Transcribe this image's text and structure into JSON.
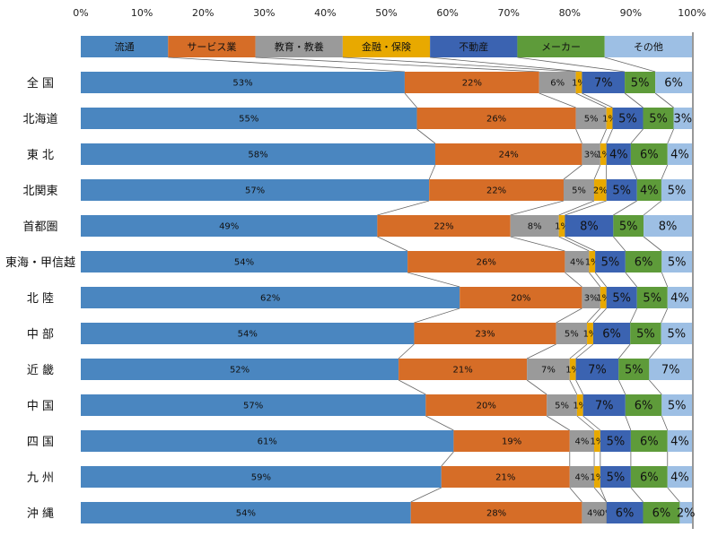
{
  "chart_data": {
    "type": "bar",
    "stacked": "100%",
    "orientation": "horizontal",
    "xlim": [
      0,
      100
    ],
    "xticks": [
      "0%",
      "10%",
      "20%",
      "30%",
      "40%",
      "50%",
      "60%",
      "70%",
      "80%",
      "90%",
      "100%"
    ],
    "legend_position": "top",
    "categories": [
      "全 国",
      "北海道",
      "東 北",
      "北関東",
      "首都圏",
      "東海・甲信越",
      "北 陸",
      "中 部",
      "近 畿",
      "中 国",
      "四 国",
      "九 州",
      "沖 縄"
    ],
    "series": [
      {
        "name": "流通",
        "color": "#4a86c0",
        "values": [
          53,
          55,
          58,
          57,
          49,
          54,
          62,
          54,
          52,
          57,
          61,
          59,
          54
        ]
      },
      {
        "name": "サービス業",
        "color": "#d66d27",
        "values": [
          22,
          26,
          24,
          22,
          22,
          26,
          20,
          23,
          21,
          20,
          19,
          21,
          28
        ]
      },
      {
        "name": "教育・教養",
        "color": "#9a9a9a",
        "values": [
          6,
          5,
          3,
          5,
          8,
          4,
          3,
          5,
          7,
          5,
          4,
          4,
          4
        ]
      },
      {
        "name": "金融・保険",
        "color": "#e8a900",
        "values": [
          1,
          1,
          1,
          2,
          1,
          1,
          1,
          1,
          1,
          1,
          1,
          1,
          0
        ]
      },
      {
        "name": "不動産",
        "color": "#3b63b1",
        "values": [
          7,
          5,
          4,
          5,
          8,
          5,
          5,
          6,
          7,
          7,
          5,
          5,
          6
        ]
      },
      {
        "name": "メーカー",
        "color": "#5e9b3a",
        "values": [
          5,
          5,
          6,
          4,
          5,
          6,
          5,
          5,
          5,
          6,
          6,
          6,
          6
        ]
      },
      {
        "name": "その他",
        "color": "#9dbfe4",
        "values": [
          6,
          3,
          4,
          5,
          8,
          5,
          4,
          5,
          7,
          5,
          4,
          4,
          2
        ]
      }
    ]
  }
}
